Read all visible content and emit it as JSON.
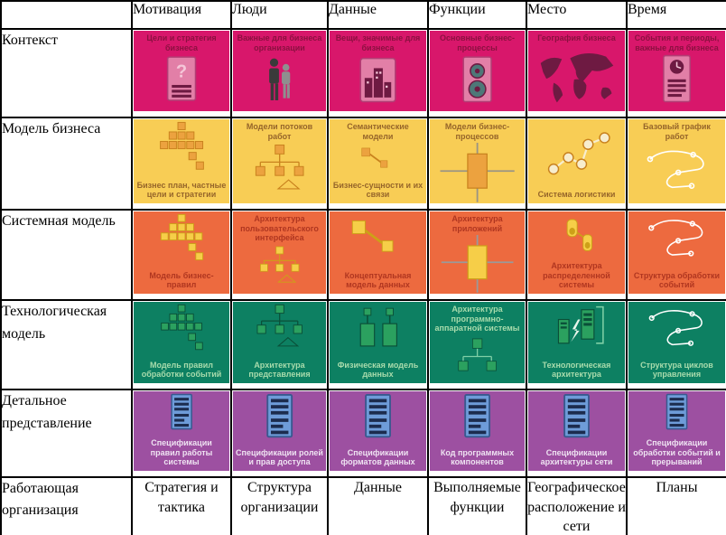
{
  "columns": [
    "Мотивация",
    "Люди",
    "Данные",
    "Функции",
    "Место",
    "Время"
  ],
  "rows": [
    {
      "label": "Контекст",
      "color": "#D8176B",
      "text_color": "#8C1040",
      "cells": [
        {
          "top": "Цели и стратегия бизнеса",
          "bottom": "",
          "icon": "document-question-icon"
        },
        {
          "top": "Важные для бизнеса организации",
          "bottom": "",
          "icon": "people-icon"
        },
        {
          "top": "Вещи, значимые для бизнеса",
          "bottom": "",
          "icon": "buildings-icon"
        },
        {
          "top": "Основные бизнес-процессы",
          "bottom": "",
          "icon": "document-gears-icon"
        },
        {
          "top": "География бизнеса",
          "bottom": "",
          "icon": "world-map-icon"
        },
        {
          "top": "События и периоды, важные для бизнеса",
          "bottom": "",
          "icon": "document-clock-icon"
        }
      ]
    },
    {
      "label": "Модель бизнеса",
      "color": "#F8CD55",
      "text_color": "#96652A",
      "cells": [
        {
          "top": "",
          "bottom": "Бизнес план, частные цели и стратегии",
          "icon": "pyramid-icon"
        },
        {
          "top": "Модели потоков работ",
          "bottom": "",
          "icon": "workflow-tree-icon"
        },
        {
          "top": "Семантические модели",
          "bottom": "Бизнес-сущности и их связи",
          "icon": "linked-entities-icon"
        },
        {
          "top": "Модели бизнес-процессов",
          "bottom": "",
          "icon": "process-cross-icon"
        },
        {
          "top": "",
          "bottom": "Система логистики",
          "icon": "logistics-nodes-icon"
        },
        {
          "top": "Базовый график работ",
          "bottom": "",
          "icon": "sketch-icon"
        }
      ]
    },
    {
      "label": "Системная модель",
      "color": "#ED6A3F",
      "text_color": "#B03620",
      "cells": [
        {
          "top": "",
          "bottom": "Модель бизнес-правил",
          "icon": "pyramid-icon"
        },
        {
          "top": "Архитектура пользовательского интерфейса",
          "bottom": "",
          "icon": "workflow-tree-icon"
        },
        {
          "top": "",
          "bottom": "Концептуальная модель данных",
          "icon": "linked-entities-icon"
        },
        {
          "top": "Архитектура приложений",
          "bottom": "",
          "icon": "process-cross-icon"
        },
        {
          "top": "",
          "bottom": "Архитектура распределенной системы",
          "icon": "distributed-devices-icon"
        },
        {
          "top": "",
          "bottom": "Структура обработки событий",
          "icon": "sketch-icon"
        }
      ]
    },
    {
      "label": "Технологическая модель",
      "color": "#0D8062",
      "text_color": "#A8DBAC",
      "cells": [
        {
          "top": "",
          "bottom": "Модель правил обработки событий",
          "icon": "pyramid-icon"
        },
        {
          "top": "",
          "bottom": "Архитектура представления",
          "icon": "workflow-tree-icon"
        },
        {
          "top": "",
          "bottom": "Физическая модель данных",
          "icon": "physical-data-icon"
        },
        {
          "top": "Архитектура программно-аппаратной системы",
          "bottom": "",
          "icon": "hardware-tree-icon"
        },
        {
          "top": "",
          "bottom": "Технологическая архитектура",
          "icon": "computers-icon"
        },
        {
          "top": "",
          "bottom": "Структура циклов управления",
          "icon": "sketch-icon"
        }
      ]
    },
    {
      "label": "Детальное представление",
      "color": "#9D50A1",
      "text_color": "#EFE3F2",
      "cells": [
        {
          "top": "",
          "bottom": "Спецификации правил работы системы",
          "icon": "spec-document-icon"
        },
        {
          "top": "",
          "bottom": "Спецификации ролей и прав доступа",
          "icon": "spec-document-icon"
        },
        {
          "top": "",
          "bottom": "Спецификации форматов данных",
          "icon": "spec-document-icon"
        },
        {
          "top": "",
          "bottom": "Код программных компонентов",
          "icon": "spec-document-icon"
        },
        {
          "top": "",
          "bottom": "Спецификации архитектуры сети",
          "icon": "spec-document-icon"
        },
        {
          "top": "",
          "bottom": "Спецификации обработки событий и прерываний",
          "icon": "spec-document-icon"
        }
      ]
    }
  ],
  "footer": {
    "label": "Работающая организация",
    "cells": [
      "Стратегия и тактика",
      "Структура организации",
      "Данные",
      "Выполняемые функции",
      "Географическое расположение и сети",
      "Планы"
    ]
  }
}
